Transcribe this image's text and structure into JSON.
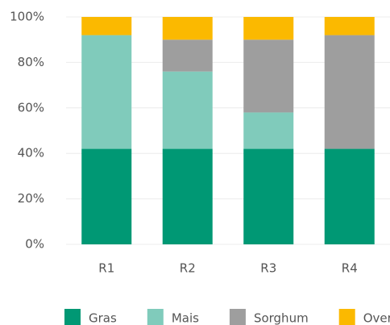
{
  "chart_data": {
    "type": "stacked_bar",
    "categories": [
      "R1",
      "R2",
      "R3",
      "R4"
    ],
    "series": [
      {
        "name": "Gras",
        "color": "#009874",
        "values": [
          42,
          42,
          42,
          42
        ]
      },
      {
        "name": "Mais",
        "color": "#80cbbb",
        "values": [
          50,
          34,
          16,
          0
        ]
      },
      {
        "name": "Sorghum",
        "color": "#9e9e9e",
        "values": [
          0,
          14,
          32,
          50
        ]
      },
      {
        "name": "Overige",
        "color": "#fbb900",
        "values": [
          8,
          10,
          10,
          8
        ]
      }
    ],
    "ylim": [
      0,
      100
    ],
    "yticks": [
      {
        "value": 0,
        "label": "0%"
      },
      {
        "value": 20,
        "label": "20%"
      },
      {
        "value": 40,
        "label": "40%"
      },
      {
        "value": 60,
        "label": "60%"
      },
      {
        "value": 80,
        "label": "80%"
      },
      {
        "value": 100,
        "label": "100%"
      }
    ],
    "grid": true,
    "legend": "bottom"
  }
}
